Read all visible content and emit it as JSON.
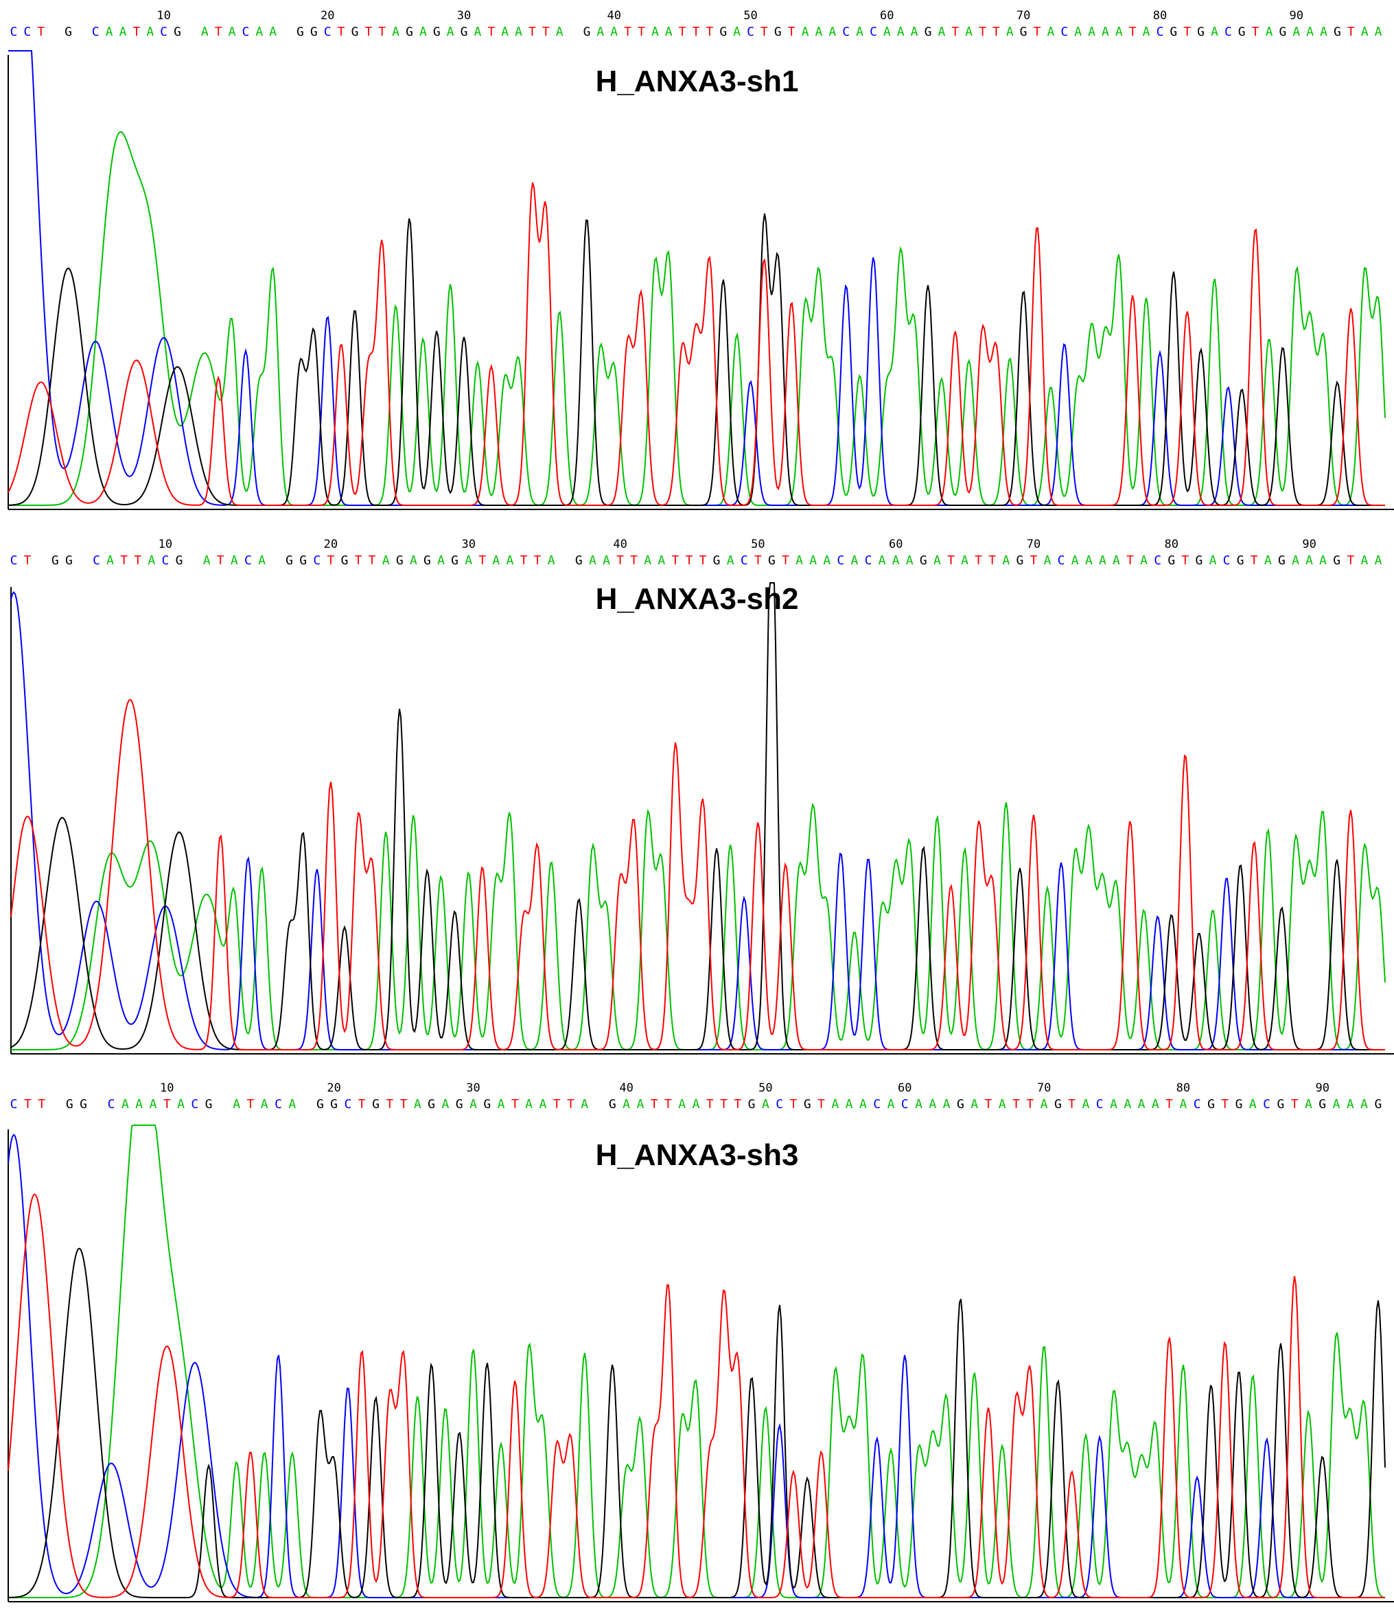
{
  "colors": {
    "A": "#00c000",
    "C": "#0000ff",
    "G": "#000000",
    "T": "#ff0000"
  },
  "chart_data": [
    {
      "type": "line",
      "title": "H_ANXA3-sh1",
      "ruler_ticks": [
        10,
        20,
        30,
        40,
        50,
        60,
        70,
        80,
        90
      ],
      "sequence": "CCT G CAATACG ATACAA GGCTGTTAGAGAGATAATTA GAATTAATTTGACTGTAAACACAAAGATATTAGTACAAAATACGTGACGTAGAAAGTAA",
      "series": [
        {
          "name": "A",
          "color": "#00c000"
        },
        {
          "name": "C",
          "color": "#0000ff"
        },
        {
          "name": "G",
          "color": "#000000"
        },
        {
          "name": "T",
          "color": "#ff0000"
        }
      ]
    },
    {
      "type": "line",
      "title": "H_ANXA3-sh2",
      "ruler_ticks": [
        10,
        20,
        30,
        40,
        50,
        60,
        70,
        80,
        90
      ],
      "sequence": "CT GG CATTACG ATACA GGCTGTTAGAGAGATAATTA GAATTAATTTGACTGTAAACACAAAGATATTAGTACAAAATACGTGACGTAGAAAGTAA",
      "series": [
        {
          "name": "A",
          "color": "#00c000"
        },
        {
          "name": "C",
          "color": "#0000ff"
        },
        {
          "name": "G",
          "color": "#000000"
        },
        {
          "name": "T",
          "color": "#ff0000"
        }
      ]
    },
    {
      "type": "line",
      "title": "H_ANXA3-sh3",
      "ruler_ticks": [
        10,
        20,
        30,
        40,
        50,
        60,
        70,
        80,
        90
      ],
      "sequence": "CTT GG CAAATACG ATACA GGCTGTTAGAGAGATAATTA GAATTAATTTGACTGTAAACACAAAGATATTAGTACAAAATACGTGACGTAGAAAG",
      "series": [
        {
          "name": "A",
          "color": "#00c000"
        },
        {
          "name": "C",
          "color": "#0000ff"
        },
        {
          "name": "G",
          "color": "#000000"
        },
        {
          "name": "T",
          "color": "#ff0000"
        }
      ]
    }
  ]
}
